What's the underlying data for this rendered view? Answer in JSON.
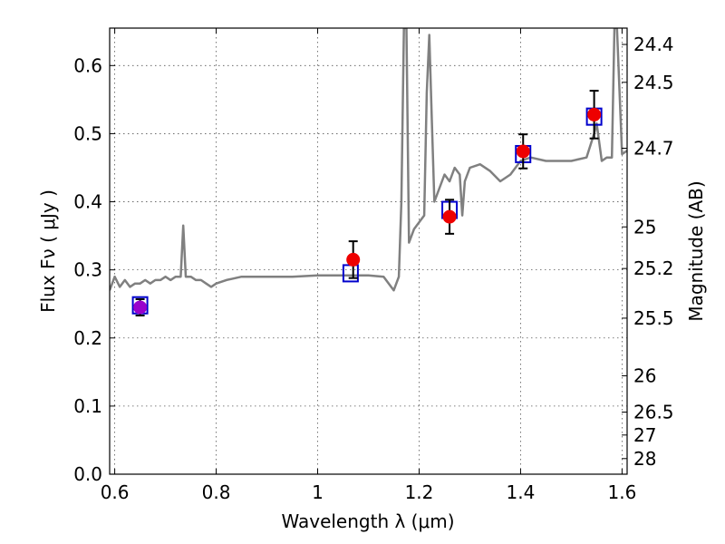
{
  "chart_data": {
    "type": "scatter",
    "xlabel": "Wavelength  λ (μm)",
    "ylabel": "Flux  Fν ( μJy )",
    "y2label": "Magnitude (AB)",
    "xlim": [
      0.59,
      1.61
    ],
    "ylim": [
      0.0,
      0.655
    ],
    "grid": true,
    "x_ticks": [
      0.6,
      0.8,
      1.0,
      1.2,
      1.4,
      1.6
    ],
    "x_tick_labels": [
      "0.6",
      "0.8",
      "1",
      "1.2",
      "1.4",
      "1.6"
    ],
    "y_ticks": [
      0.0,
      0.1,
      0.2,
      0.3,
      0.4,
      0.5,
      0.6
    ],
    "y_tick_labels": [
      "0.0",
      "0.1",
      "0.2",
      "0.3",
      "0.4",
      "0.5",
      "0.6"
    ],
    "magnitude_ticks": [
      {
        "label": "24.4",
        "flux": 0.631
      },
      {
        "label": "24.5",
        "flux": 0.5754
      },
      {
        "label": "24.7",
        "flux": 0.4786
      },
      {
        "label": "25",
        "flux": 0.3631
      },
      {
        "label": "25.2",
        "flux": 0.302
      },
      {
        "label": "25.5",
        "flux": 0.2291
      },
      {
        "label": "26",
        "flux": 0.1445
      },
      {
        "label": "26.5",
        "flux": 0.0912
      },
      {
        "label": "27",
        "flux": 0.0575
      },
      {
        "label": "28",
        "flux": 0.0229
      }
    ],
    "series": [
      {
        "type": "line",
        "color": "#808080",
        "x": [
          0.59,
          0.6,
          0.61,
          0.62,
          0.63,
          0.64,
          0.65,
          0.66,
          0.67,
          0.68,
          0.69,
          0.7,
          0.71,
          0.72,
          0.73,
          0.735,
          0.74,
          0.75,
          0.76,
          0.77,
          0.78,
          0.79,
          0.8,
          0.82,
          0.85,
          0.9,
          0.95,
          1.0,
          1.05,
          1.1,
          1.13,
          1.15,
          1.16,
          1.165,
          1.17,
          1.175,
          1.18,
          1.19,
          1.2,
          1.21,
          1.215,
          1.22,
          1.225,
          1.23,
          1.24,
          1.25,
          1.26,
          1.27,
          1.28,
          1.285,
          1.29,
          1.3,
          1.32,
          1.34,
          1.36,
          1.38,
          1.4,
          1.42,
          1.45,
          1.5,
          1.53,
          1.545,
          1.55,
          1.56,
          1.57,
          1.58,
          1.585,
          1.59,
          1.6,
          1.61
        ],
        "y": [
          0.27,
          0.29,
          0.275,
          0.285,
          0.275,
          0.28,
          0.28,
          0.285,
          0.28,
          0.285,
          0.285,
          0.29,
          0.285,
          0.29,
          0.29,
          0.365,
          0.29,
          0.29,
          0.285,
          0.285,
          0.28,
          0.275,
          0.28,
          0.285,
          0.29,
          0.29,
          0.29,
          0.292,
          0.292,
          0.292,
          0.29,
          0.27,
          0.29,
          0.4,
          0.655,
          0.655,
          0.34,
          0.36,
          0.37,
          0.38,
          0.56,
          0.645,
          0.52,
          0.4,
          0.42,
          0.44,
          0.43,
          0.45,
          0.44,
          0.38,
          0.43,
          0.45,
          0.455,
          0.445,
          0.43,
          0.44,
          0.46,
          0.465,
          0.46,
          0.46,
          0.465,
          0.5,
          0.515,
          0.46,
          0.465,
          0.465,
          0.655,
          0.655,
          0.47,
          0.475
        ]
      },
      {
        "type": "model_box",
        "color": "#0000cc",
        "x": [
          0.65,
          1.065,
          1.26,
          1.405,
          1.545
        ],
        "y": [
          0.248,
          0.295,
          0.388,
          0.47,
          0.525
        ]
      },
      {
        "type": "observed",
        "x": [
          0.65,
          1.07,
          1.26,
          1.405,
          1.545
        ],
        "y": [
          0.245,
          0.315,
          0.378,
          0.474,
          0.528
        ],
        "err": [
          0.012,
          0.027,
          0.025,
          0.025,
          0.035
        ],
        "colors": [
          "#9900cc",
          "#ee0000",
          "#ee0000",
          "#ee0000",
          "#ee0000"
        ]
      }
    ]
  }
}
